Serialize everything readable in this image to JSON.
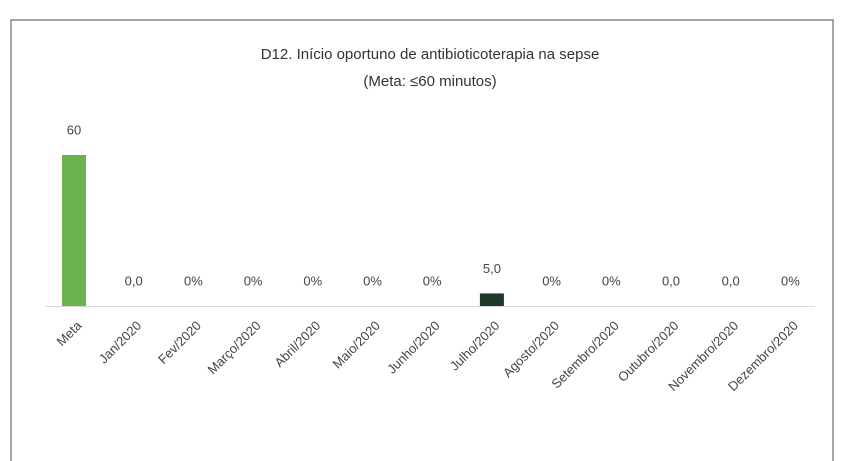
{
  "chart_data": {
    "type": "bar",
    "title": "D12. Início oportuno de antibioticoterapia na sepse",
    "subtitle": "(Meta: ≤60 minutos)",
    "categories": [
      "Meta",
      "Jan/2020",
      "Fev/2020",
      "Março/2020",
      "Abril/2020",
      "Maio/2020",
      "Junho/2020",
      "Julho/2020",
      "Agosto/2020",
      "Setembro/2020",
      "Outubro/2020",
      "Novembro/2020",
      "Dezembro/2020"
    ],
    "values": [
      60,
      0,
      0,
      0,
      0,
      0,
      0,
      5,
      0,
      0,
      0,
      0,
      0
    ],
    "value_labels": [
      "60",
      "0,0",
      "0%",
      "0%",
      "0%",
      "0%",
      "0%",
      "5,0",
      "0%",
      "0%",
      "0,0",
      "0,0",
      "0%"
    ],
    "colors": [
      "#6ab150",
      "#6ab150",
      "#6ab150",
      "#6ab150",
      "#6ab150",
      "#6ab150",
      "#6ab150",
      "#1f3a2b",
      "#6ab150",
      "#6ab150",
      "#6ab150",
      "#6ab150",
      "#6ab150"
    ]
  }
}
